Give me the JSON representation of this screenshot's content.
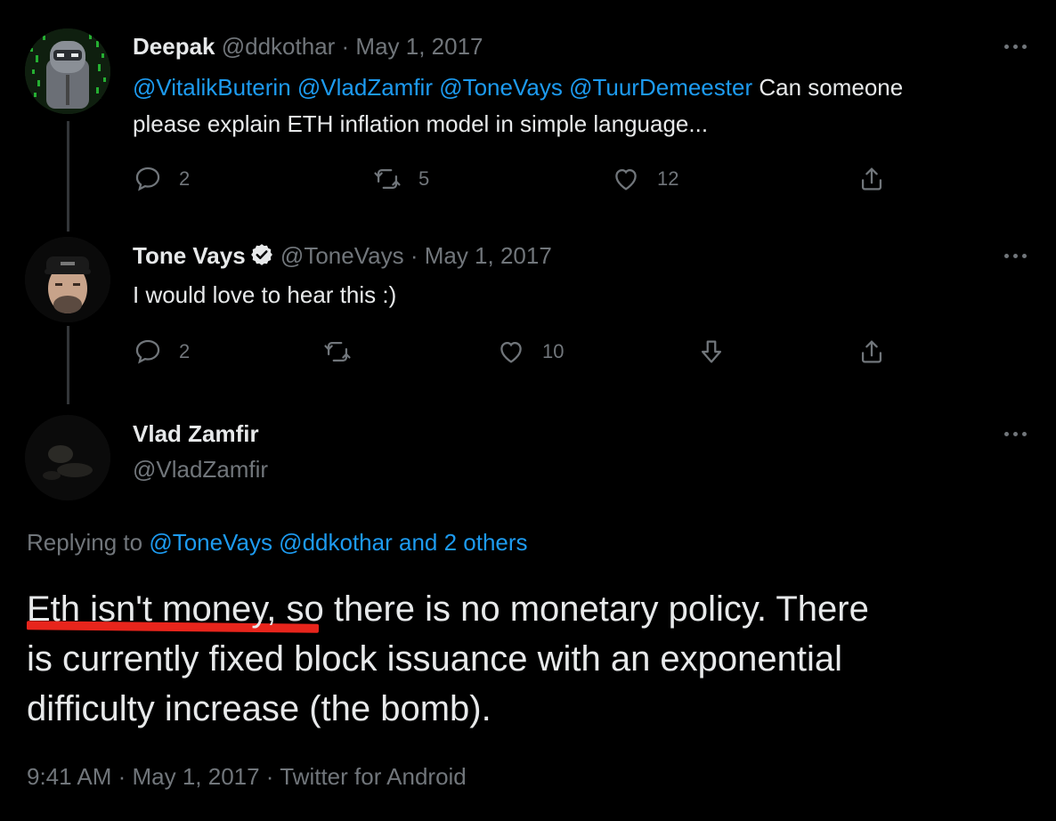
{
  "tweet1": {
    "name": "Deepak",
    "handle": "@ddkothar",
    "date": "· May 1, 2017",
    "mentions": "@VitalikButerin @VladZamfir @ToneVays @TuurDemeester",
    "text_line1": "Can someone",
    "text_line2": "please explain ETH inflation model in simple language...",
    "replies": "2",
    "retweets": "5",
    "likes": "12"
  },
  "tweet2": {
    "name": "Tone Vays",
    "handle": "@ToneVays",
    "date": "· May 1, 2017",
    "text": "I would love to hear this :)",
    "replies": "2",
    "likes": "10"
  },
  "tweet3": {
    "name": "Vlad Zamfir",
    "handle": "@VladZamfir",
    "replying_prefix": "Replying to",
    "replying_links": "@ToneVays @ddkothar and 2 others",
    "text_underlined": "Eth isn't money,",
    "text_rest_line1": " so there is no monetary policy. There",
    "text_line2": "is currently fixed block issuance with an exponential",
    "text_line3": "difficulty increase (the bomb).",
    "meta": "9:41 AM · May 1, 2017 · Twitter for Android"
  },
  "colors": {
    "background": "#000000",
    "text": "#e7e9ea",
    "muted": "#71767b",
    "link": "#1d9bf0",
    "highlight_underline": "#e8251c"
  }
}
